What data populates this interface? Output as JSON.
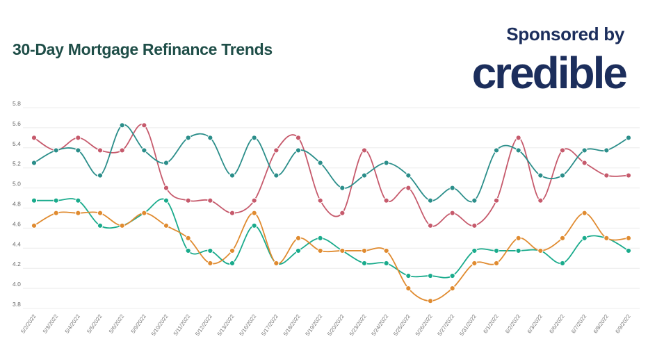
{
  "header": {
    "title": "30-Day Mortgage Refinance Trends",
    "sponsor_label": "Sponsored by",
    "logo_text": "credible"
  },
  "colors": {
    "title": "#1f4e48",
    "logo": "#1c2e5c",
    "series": [
      "#c65a6c",
      "#2b8e8a",
      "#1aab8c",
      "#e08b30"
    ]
  },
  "chart_data": {
    "type": "line",
    "title": "30-Day Mortgage Refinance Trends",
    "xlabel": "",
    "ylabel": "",
    "ylim": [
      3.8,
      5.8
    ],
    "yticks": [
      "5.8",
      "5.6",
      "5.4",
      "5.2",
      "5.0",
      "4.8",
      "4.6",
      "4.4",
      "4.2",
      "4.0",
      "3.8"
    ],
    "grid": true,
    "smooth": true,
    "x": [
      "5/2/2022",
      "5/3/2022",
      "5/4/2022",
      "5/5/2022",
      "5/6/2022",
      "5/9/2022",
      "5/10/2022",
      "5/11/2022",
      "5/12/2022",
      "5/13/2022",
      "5/16/2022",
      "5/17/2022",
      "5/18/2022",
      "5/19/2022",
      "5/20/2022",
      "5/23/2022",
      "5/24/2022",
      "5/25/2022",
      "5/26/2022",
      "5/27/2022",
      "5/31/2022",
      "6/1/2022",
      "6/2/2022",
      "6/3/2022",
      "6/6/2022",
      "6/7/2022",
      "6/8/2022",
      "6/9/2022"
    ],
    "series": [
      {
        "color": "#c65a6c",
        "values": [
          5.5,
          5.375,
          5.5,
          5.375,
          5.375,
          5.625,
          5.0,
          4.875,
          4.875,
          4.75,
          4.875,
          5.375,
          5.5,
          4.875,
          4.75,
          5.375,
          4.875,
          5.0,
          4.625,
          4.75,
          4.625,
          4.875,
          5.5,
          4.875,
          5.375,
          5.25,
          5.125,
          5.125
        ]
      },
      {
        "color": "#2b8e8a",
        "values": [
          5.25,
          5.375,
          5.375,
          5.125,
          5.625,
          5.375,
          5.25,
          5.5,
          5.5,
          5.125,
          5.5,
          5.125,
          5.375,
          5.25,
          5.0,
          5.125,
          5.25,
          5.125,
          4.875,
          5.0,
          4.875,
          5.375,
          5.375,
          5.125,
          5.125,
          5.375,
          5.375,
          5.5
        ]
      },
      {
        "color": "#1aab8c",
        "values": [
          4.875,
          4.875,
          4.875,
          4.625,
          4.625,
          4.75,
          4.875,
          4.375,
          4.375,
          4.25,
          4.625,
          4.25,
          4.375,
          4.5,
          4.375,
          4.25,
          4.25,
          4.125,
          4.125,
          4.125,
          4.375,
          4.375,
          4.375,
          4.375,
          4.25,
          4.5,
          4.5,
          4.375
        ]
      },
      {
        "color": "#e08b30",
        "values": [
          4.625,
          4.75,
          4.75,
          4.75,
          4.625,
          4.75,
          4.625,
          4.5,
          4.25,
          4.375,
          4.75,
          4.25,
          4.5,
          4.375,
          4.375,
          4.375,
          4.375,
          4.0,
          3.875,
          4.0,
          4.25,
          4.25,
          4.5,
          4.375,
          4.5,
          4.75,
          4.5,
          4.5
        ]
      }
    ]
  }
}
